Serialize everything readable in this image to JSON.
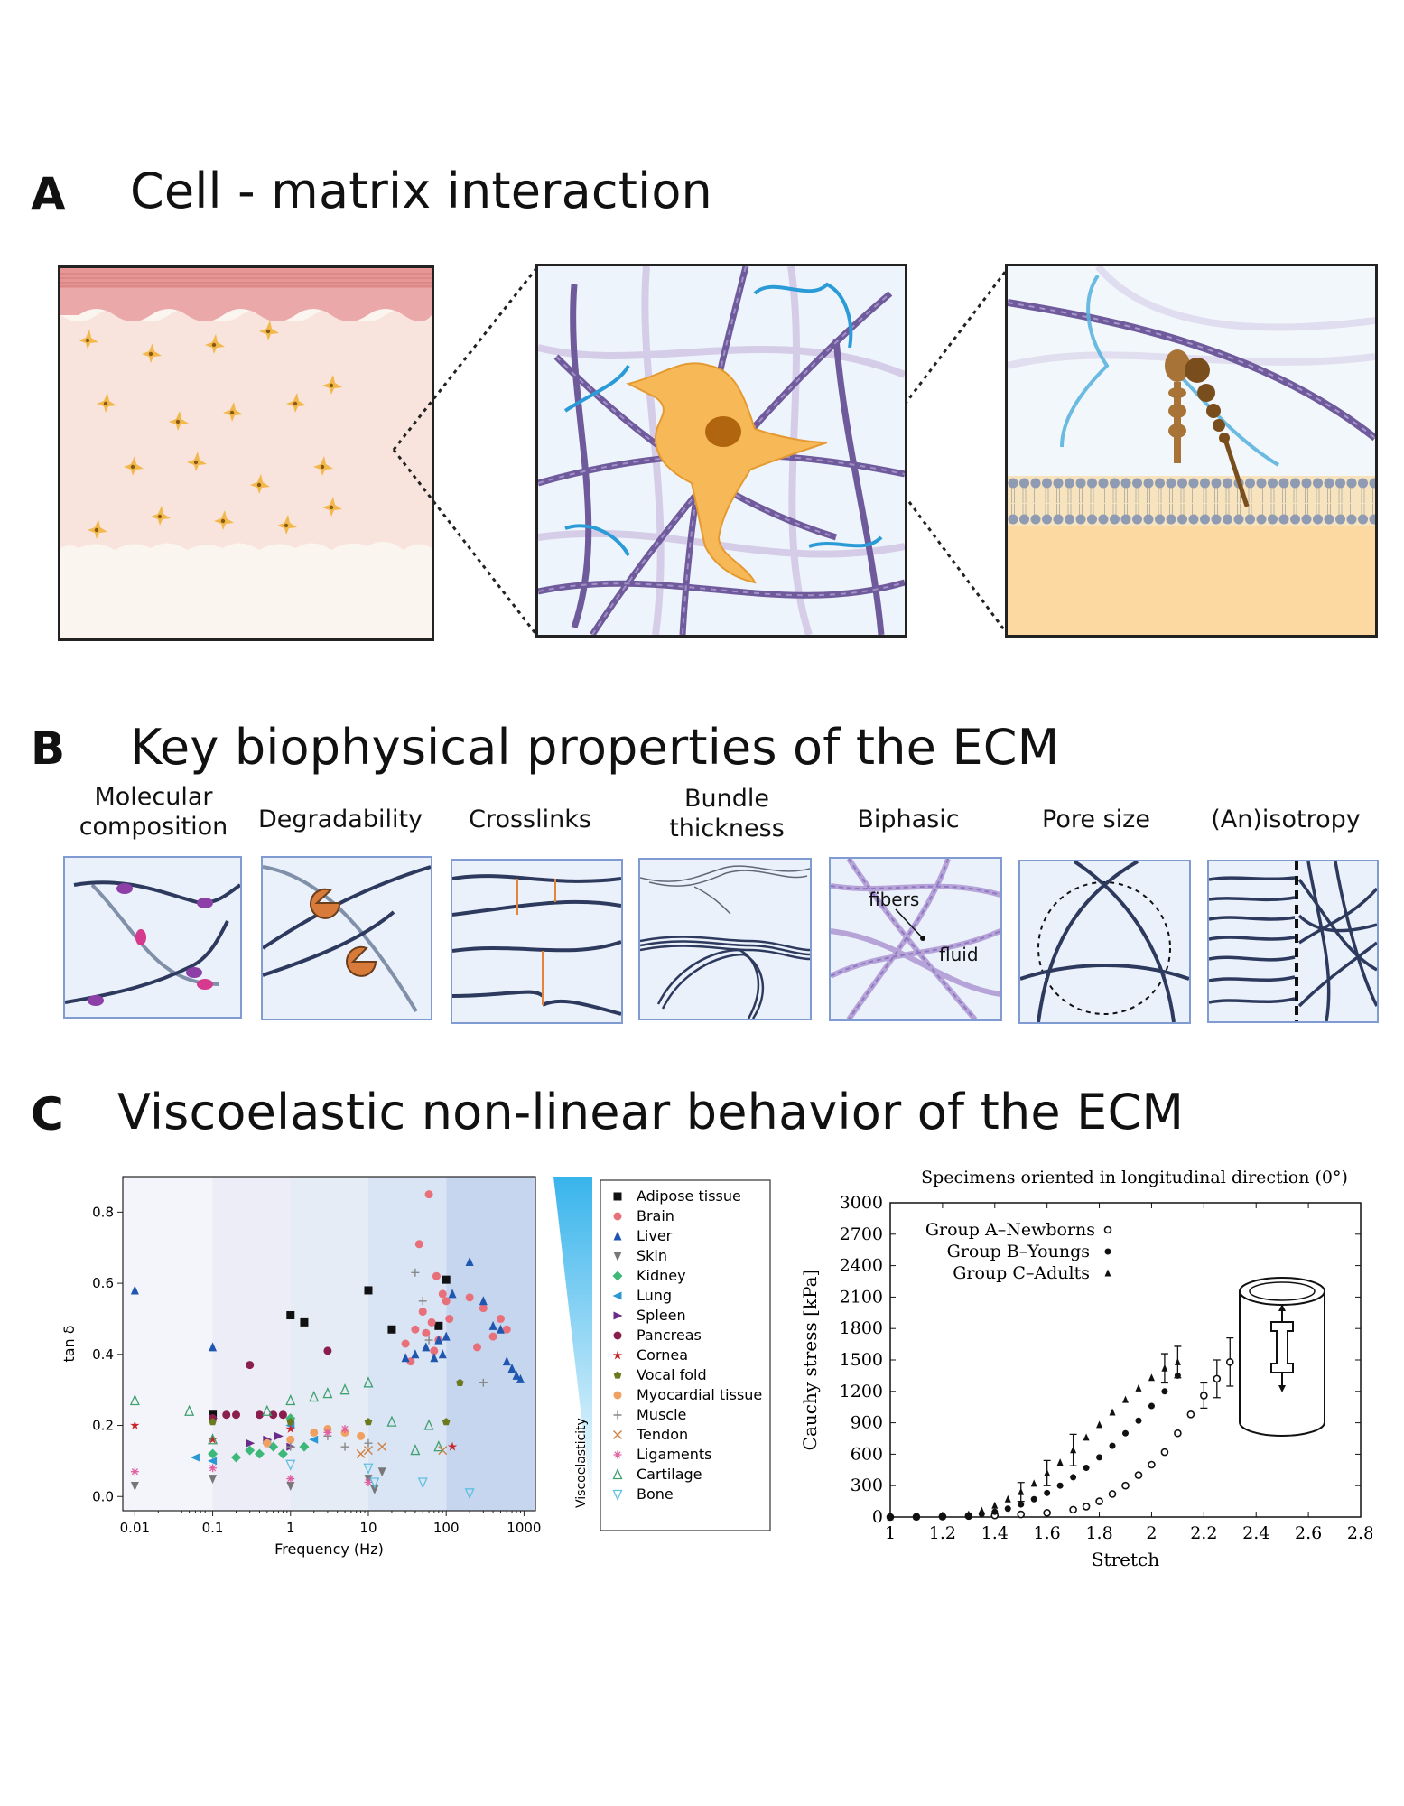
{
  "sections": {
    "a": {
      "letter": "A",
      "title": "Cell - matrix interaction"
    },
    "b": {
      "letter": "B",
      "title": "Key biophysical properties of the ECM"
    },
    "c": {
      "letter": "C",
      "title": "Viscoelastic non-linear behavior of the ECM"
    }
  },
  "properties": [
    {
      "label_line1": "Molecular",
      "label_line2": "composition"
    },
    {
      "label_line1": "Degradability",
      "label_line2": ""
    },
    {
      "label_line1": "Crosslinks",
      "label_line2": ""
    },
    {
      "label_line1": "Bundle",
      "label_line2": "thickness"
    },
    {
      "label_line1": "Biphasic",
      "label_line2": ""
    },
    {
      "label_line1": "Pore size",
      "label_line2": ""
    },
    {
      "label_line1": "(An)isotropy",
      "label_line2": ""
    }
  ],
  "biphasic_labels": {
    "fibers": "fibers",
    "fluid": "fluid"
  },
  "viscoelasticity_label": "Viscoelasticity",
  "colors": {
    "fiber": "#2d3a5e",
    "purple_fiber": "#8a6fb5",
    "cell": "#f5b94a",
    "box_border": "#7f9bd2",
    "box_fill": "#eaf1fb"
  },
  "chart_data": [
    {
      "type": "scatter",
      "xlabel": "Frequency (Hz)",
      "ylabel": "tan δ",
      "xscale": "log",
      "xlim": [
        0.007,
        1400
      ],
      "ylim": [
        -0.04,
        0.9
      ],
      "xticks": [
        "0.01",
        "0.1",
        "1",
        "10",
        "100",
        "1000"
      ],
      "yticks": [
        "0.0",
        "0.2",
        "0.4",
        "0.6",
        "0.8"
      ],
      "legend_placement": "right",
      "series": [
        {
          "name": "Adipose tissue",
          "color": "#111111",
          "marker": "square",
          "points": [
            [
              0.1,
              0.23
            ],
            [
              1,
              0.51
            ],
            [
              1.5,
              0.49
            ],
            [
              10,
              0.58
            ],
            [
              20,
              0.47
            ],
            [
              80,
              0.48
            ],
            [
              100,
              0.61
            ]
          ]
        },
        {
          "name": "Brain",
          "color": "#e8707a",
          "marker": "circle",
          "points": [
            [
              30,
              0.43
            ],
            [
              35,
              0.38
            ],
            [
              40,
              0.47
            ],
            [
              45,
              0.71
            ],
            [
              50,
              0.52
            ],
            [
              55,
              0.46
            ],
            [
              60,
              0.85
            ],
            [
              65,
              0.49
            ],
            [
              70,
              0.41
            ],
            [
              75,
              0.62
            ],
            [
              80,
              0.44
            ],
            [
              90,
              0.57
            ],
            [
              100,
              0.55
            ],
            [
              110,
              0.5
            ],
            [
              200,
              0.56
            ],
            [
              250,
              0.42
            ],
            [
              300,
              0.53
            ],
            [
              400,
              0.45
            ],
            [
              500,
              0.5
            ],
            [
              600,
              0.47
            ]
          ]
        },
        {
          "name": "Liver",
          "color": "#1f56b0",
          "marker": "triangle-up",
          "points": [
            [
              0.01,
              0.58
            ],
            [
              0.1,
              0.42
            ],
            [
              30,
              0.39
            ],
            [
              40,
              0.4
            ],
            [
              55,
              0.42
            ],
            [
              70,
              0.39
            ],
            [
              80,
              0.44
            ],
            [
              90,
              0.4
            ],
            [
              100,
              0.45
            ],
            [
              120,
              0.57
            ],
            [
              200,
              0.66
            ],
            [
              300,
              0.55
            ],
            [
              400,
              0.48
            ],
            [
              500,
              0.47
            ],
            [
              600,
              0.38
            ],
            [
              700,
              0.36
            ],
            [
              800,
              0.34
            ],
            [
              900,
              0.33
            ]
          ]
        },
        {
          "name": "Skin",
          "color": "#777777",
          "marker": "triangle-down",
          "points": [
            [
              0.01,
              0.03
            ],
            [
              0.1,
              0.05
            ],
            [
              1,
              0.03
            ],
            [
              10,
              0.05
            ],
            [
              12,
              0.02
            ],
            [
              15,
              0.07
            ]
          ]
        },
        {
          "name": "Kidney",
          "color": "#3cb878",
          "marker": "diamond",
          "points": [
            [
              0.1,
              0.12
            ],
            [
              0.2,
              0.11
            ],
            [
              0.3,
              0.13
            ],
            [
              0.4,
              0.12
            ],
            [
              0.6,
              0.14
            ],
            [
              0.8,
              0.12
            ],
            [
              1,
              0.22
            ],
            [
              1.5,
              0.14
            ]
          ]
        },
        {
          "name": "Lung",
          "color": "#2a98d4",
          "marker": "triangle-left",
          "points": [
            [
              0.06,
              0.11
            ],
            [
              0.1,
              0.1
            ],
            [
              0.5,
              0.15
            ],
            [
              1,
              0.2
            ],
            [
              2,
              0.16
            ]
          ]
        },
        {
          "name": "Spleen",
          "color": "#6a2c8a",
          "marker": "triangle-right",
          "points": [
            [
              0.1,
              0.22
            ],
            [
              0.3,
              0.15
            ],
            [
              0.5,
              0.16
            ],
            [
              0.7,
              0.17
            ],
            [
              1,
              0.14
            ]
          ]
        },
        {
          "name": "Pancreas",
          "color": "#8a1f4e",
          "marker": "circle",
          "points": [
            [
              0.1,
              0.22
            ],
            [
              0.15,
              0.23
            ],
            [
              0.2,
              0.23
            ],
            [
              0.3,
              0.37
            ],
            [
              0.4,
              0.23
            ],
            [
              0.6,
              0.23
            ],
            [
              0.8,
              0.23
            ],
            [
              3,
              0.41
            ]
          ]
        },
        {
          "name": "Cornea",
          "color": "#c8262e",
          "marker": "star",
          "points": [
            [
              0.01,
              0.2
            ],
            [
              0.1,
              0.16
            ],
            [
              1,
              0.19
            ],
            [
              120,
              0.14
            ]
          ]
        },
        {
          "name": "Vocal fold",
          "color": "#6a7a1c",
          "marker": "pentagon",
          "points": [
            [
              0.1,
              0.21
            ],
            [
              1,
              0.21
            ],
            [
              10,
              0.21
            ],
            [
              100,
              0.21
            ],
            [
              150,
              0.32
            ]
          ]
        },
        {
          "name": "Myocardial tissue",
          "color": "#f0a060",
          "marker": "circle",
          "points": [
            [
              0.5,
              0.15
            ],
            [
              1,
              0.16
            ],
            [
              2,
              0.18
            ],
            [
              3,
              0.19
            ],
            [
              5,
              0.18
            ],
            [
              8,
              0.17
            ]
          ]
        },
        {
          "name": "Muscle",
          "color": "#888888",
          "marker": "plus",
          "points": [
            [
              1,
              0.14
            ],
            [
              3,
              0.17
            ],
            [
              5,
              0.14
            ],
            [
              10,
              0.15
            ],
            [
              40,
              0.63
            ],
            [
              50,
              0.55
            ],
            [
              60,
              0.44
            ],
            [
              300,
              0.32
            ]
          ]
        },
        {
          "name": "Tendon",
          "color": "#d08040",
          "marker": "x",
          "points": [
            [
              8,
              0.12
            ],
            [
              10,
              0.13
            ],
            [
              15,
              0.14
            ],
            [
              90,
              0.13
            ]
          ]
        },
        {
          "name": "Ligaments",
          "color": "#e060a0",
          "marker": "asterisk",
          "points": [
            [
              0.01,
              0.07
            ],
            [
              0.1,
              0.08
            ],
            [
              1,
              0.05
            ],
            [
              3,
              0.18
            ],
            [
              5,
              0.19
            ],
            [
              10,
              0.04
            ]
          ]
        },
        {
          "name": "Cartilage",
          "color": "#40a070",
          "marker": "triangle-open",
          "points": [
            [
              0.01,
              0.27
            ],
            [
              0.05,
              0.24
            ],
            [
              0.1,
              0.16
            ],
            [
              0.5,
              0.24
            ],
            [
              1,
              0.27
            ],
            [
              2,
              0.28
            ],
            [
              3,
              0.29
            ],
            [
              5,
              0.3
            ],
            [
              10,
              0.32
            ],
            [
              20,
              0.21
            ],
            [
              40,
              0.13
            ],
            [
              60,
              0.2
            ],
            [
              80,
              0.14
            ]
          ]
        },
        {
          "name": "Bone",
          "color": "#60c0e0",
          "marker": "triangle-down-open",
          "points": [
            [
              1,
              0.09
            ],
            [
              10,
              0.08
            ],
            [
              12,
              0.04
            ],
            [
              50,
              0.04
            ],
            [
              200,
              0.01
            ]
          ]
        }
      ]
    },
    {
      "type": "scatter",
      "title": "Specimens oriented in longitudinal direction (0°)",
      "xlabel": "Stretch",
      "ylabel": "Cauchy stress [kPa]",
      "xlim": [
        1,
        2.8
      ],
      "ylim": [
        0,
        3000
      ],
      "xticks": [
        "1",
        "1.2",
        "1.4",
        "1.6",
        "1.8",
        "2",
        "2.2",
        "2.4",
        "2.6",
        "2.8"
      ],
      "yticks": [
        "0",
        "300",
        "600",
        "900",
        "1200",
        "1500",
        "1800",
        "2100",
        "2400",
        "2700",
        "3000"
      ],
      "legend_placement": "top-left",
      "series": [
        {
          "name": "Group A–Newborns",
          "marker": "open-circle",
          "points": [
            [
              1.0,
              0
            ],
            [
              1.1,
              2
            ],
            [
              1.2,
              5
            ],
            [
              1.3,
              10
            ],
            [
              1.4,
              15
            ],
            [
              1.5,
              25
            ],
            [
              1.6,
              40
            ],
            [
              1.7,
              70
            ],
            [
              1.75,
              100
            ],
            [
              1.8,
              150
            ],
            [
              1.85,
              220
            ],
            [
              1.9,
              300
            ],
            [
              1.95,
              400
            ],
            [
              2.0,
              500
            ],
            [
              2.05,
              620
            ],
            [
              2.1,
              800
            ],
            [
              2.15,
              980
            ],
            [
              2.2,
              1160
            ],
            [
              2.25,
              1320
            ],
            [
              2.3,
              1480
            ]
          ],
          "errors": [
            [
              2.2,
              120
            ],
            [
              2.25,
              180
            ],
            [
              2.3,
              230
            ]
          ]
        },
        {
          "name": "Group B–Youngs",
          "marker": "filled-circle",
          "points": [
            [
              1.0,
              0
            ],
            [
              1.1,
              2
            ],
            [
              1.2,
              6
            ],
            [
              1.3,
              15
            ],
            [
              1.35,
              30
            ],
            [
              1.4,
              50
            ],
            [
              1.45,
              80
            ],
            [
              1.5,
              120
            ],
            [
              1.55,
              170
            ],
            [
              1.6,
              230
            ],
            [
              1.65,
              300
            ],
            [
              1.7,
              380
            ],
            [
              1.75,
              470
            ],
            [
              1.8,
              570
            ],
            [
              1.85,
              680
            ],
            [
              1.9,
              800
            ],
            [
              1.95,
              920
            ],
            [
              2.0,
              1060
            ],
            [
              2.05,
              1200
            ],
            [
              2.1,
              1350
            ]
          ]
        },
        {
          "name": "Group C–Adults",
          "marker": "filled-triangle",
          "points": [
            [
              1.0,
              0
            ],
            [
              1.1,
              3
            ],
            [
              1.2,
              8
            ],
            [
              1.3,
              25
            ],
            [
              1.35,
              60
            ],
            [
              1.4,
              110
            ],
            [
              1.45,
              170
            ],
            [
              1.5,
              240
            ],
            [
              1.55,
              320
            ],
            [
              1.6,
              420
            ],
            [
              1.65,
              520
            ],
            [
              1.7,
              640
            ],
            [
              1.75,
              760
            ],
            [
              1.8,
              880
            ],
            [
              1.85,
              1000
            ],
            [
              1.9,
              1120
            ],
            [
              1.95,
              1230
            ],
            [
              2.0,
              1330
            ],
            [
              2.05,
              1420
            ],
            [
              2.1,
              1480
            ]
          ],
          "errors": [
            [
              1.5,
              90
            ],
            [
              1.6,
              120
            ],
            [
              1.7,
              150
            ],
            [
              2.05,
              140
            ],
            [
              2.1,
              150
            ]
          ]
        }
      ]
    }
  ]
}
